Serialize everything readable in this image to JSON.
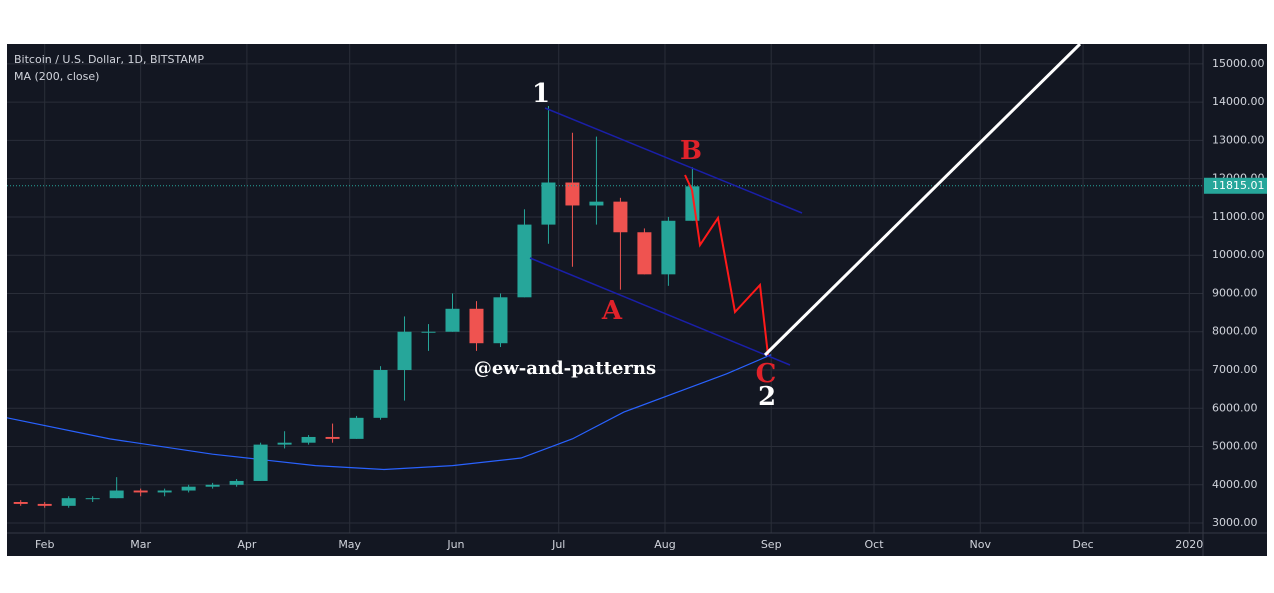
{
  "chart_data": {
    "type": "candlestick",
    "title": "Bitcoin / U.S. Dollar, 1D, BITSTAMP",
    "indicator_label": "MA (200, close)",
    "x": [
      21,
      28,
      35,
      42,
      49,
      56,
      63,
      70,
      77,
      84,
      91,
      98,
      105,
      112,
      119,
      126,
      133,
      140,
      147,
      154,
      161,
      168,
      175,
      182,
      189,
      196,
      203,
      210,
      217
    ],
    "open": [
      3550,
      3500,
      3450,
      3650,
      3650,
      3850,
      3800,
      3850,
      3950,
      4000,
      4100,
      5050,
      5100,
      5250,
      5200,
      5750,
      7000,
      8000,
      8000,
      8600,
      7700,
      8900,
      10800,
      11900,
      11300,
      11400,
      10600,
      9500,
      10900
    ],
    "high": [
      3600,
      3550,
      3700,
      3700,
      4200,
      3900,
      3900,
      4000,
      4050,
      4150,
      5100,
      5400,
      5300,
      5600,
      5800,
      7100,
      8400,
      8200,
      9000,
      8800,
      9000,
      11200,
      13900,
      13200,
      13100,
      11500,
      10700,
      11000,
      12300
    ],
    "low": [
      3450,
      3400,
      3400,
      3550,
      3650,
      3700,
      3700,
      3800,
      3900,
      3950,
      4100,
      4950,
      5050,
      5100,
      5200,
      5700,
      6200,
      7500,
      8000,
      7500,
      7600,
      8900,
      10300,
      9700,
      10800,
      9100,
      9500,
      9200,
      10900
    ],
    "close": [
      3500,
      3450,
      3650,
      3650,
      3850,
      3800,
      3850,
      3950,
      4000,
      4100,
      5050,
      5100,
      5250,
      5200,
      5750,
      7000,
      8000,
      8000,
      8600,
      7700,
      8900,
      10800,
      11900,
      11300,
      11400,
      10600,
      9500,
      10900,
      11800
    ],
    "up_color": "#26a69a",
    "down_color": "#ef5350",
    "ma": {
      "name": "MA (200, close)",
      "color": "#2962ff",
      "x": [
        20,
        50,
        80,
        110,
        130,
        150,
        170,
        185,
        200,
        215,
        230,
        243
      ],
      "values": [
        5750,
        5200,
        4800,
        4500,
        4400,
        4500,
        4700,
        5200,
        5900,
        6400,
        6900,
        7400
      ]
    },
    "last_price": {
      "value": 11815.01,
      "label": "11815.01",
      "color": "#26a69a"
    },
    "xlim": [
      20,
      369
    ],
    "ylim": [
      2740,
      15520
    ],
    "xticks": [
      {
        "value": 31,
        "label": "Feb"
      },
      {
        "value": 59,
        "label": "Mar"
      },
      {
        "value": 90,
        "label": "Apr"
      },
      {
        "value": 120,
        "label": "May"
      },
      {
        "value": 151,
        "label": "Jun"
      },
      {
        "value": 181,
        "label": "Jul"
      },
      {
        "value": 212,
        "label": "Aug"
      },
      {
        "value": 243,
        "label": "Sep"
      },
      {
        "value": 273,
        "label": "Oct"
      },
      {
        "value": 304,
        "label": "Nov"
      },
      {
        "value": 334,
        "label": "Dec"
      },
      {
        "value": 365,
        "label": "2020"
      }
    ],
    "yticks": [
      {
        "value": 3000,
        "label": "3000.00"
      },
      {
        "value": 4000,
        "label": "4000.00"
      },
      {
        "value": 5000,
        "label": "5000.00"
      },
      {
        "value": 6000,
        "label": "6000.00"
      },
      {
        "value": 7000,
        "label": "7000.00"
      },
      {
        "value": 8000,
        "label": "8000.00"
      },
      {
        "value": 9000,
        "label": "9000.00"
      },
      {
        "value": 10000,
        "label": "10000.00"
      },
      {
        "value": 11000,
        "label": "11000.00"
      },
      {
        "value": 12000,
        "label": "12000.00"
      },
      {
        "value": 13000,
        "label": "13000.00"
      },
      {
        "value": 14000,
        "label": "14000.00"
      },
      {
        "value": 15000,
        "label": "15000.00"
      }
    ],
    "grid": true,
    "annotations": [
      "1",
      "B",
      "A",
      "C",
      "2",
      "@ew-and-patterns"
    ]
  }
}
